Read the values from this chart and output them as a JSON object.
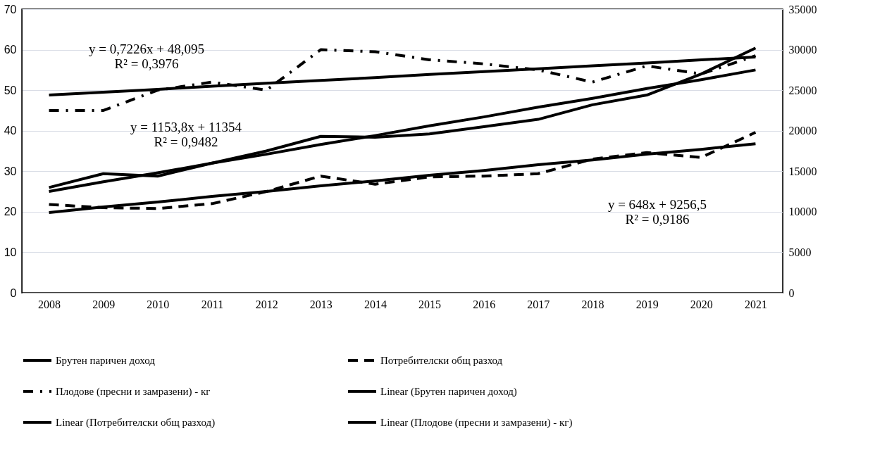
{
  "chart_data": {
    "type": "line",
    "categories": [
      "2008",
      "2009",
      "2010",
      "2011",
      "2012",
      "2013",
      "2014",
      "2015",
      "2016",
      "2017",
      "2018",
      "2019",
      "2020",
      "2021"
    ],
    "series": [
      {
        "name": "Брутен паричен доход",
        "color": "#000000",
        "axis": "y2",
        "line_style": "solid",
        "values": [
          13000,
          14700,
          14400,
          16000,
          17500,
          19300,
          19200,
          19600,
          20500,
          21400,
          23200,
          24400,
          27000,
          30200
        ]
      },
      {
        "name": "Потребителски общ разход",
        "color": "#000000",
        "axis": "y2",
        "line_style": "dashed",
        "values": [
          10900,
          10500,
          10400,
          11000,
          12500,
          14400,
          13400,
          14300,
          14400,
          14700,
          16500,
          17300,
          16700,
          19800
        ]
      },
      {
        "name": "Плодове (пресни и замразени) - кг",
        "color": "#000000",
        "axis": "y",
        "line_style": "dashdot",
        "values": [
          45,
          45,
          50,
          52,
          50,
          60,
          59.5,
          57.5,
          56.5,
          55,
          52,
          56,
          54,
          58.5
        ]
      },
      {
        "name": "Linear (Брутен паричен доход)",
        "color": "#000000",
        "axis": "y2",
        "line_style": "solid",
        "values": [
          12500,
          13700,
          14800,
          16000,
          17100,
          18300,
          19400,
          20600,
          21700,
          22900,
          24000,
          25200,
          26300,
          27500
        ]
      },
      {
        "name": "Linear (Потребителски общ разход)",
        "color": "#000000",
        "axis": "y2",
        "line_style": "solid",
        "values": [
          9900,
          10600,
          11200,
          11900,
          12500,
          13200,
          13800,
          14500,
          15100,
          15800,
          16400,
          17100,
          17700,
          18400
        ]
      },
      {
        "name": "Linear (Плодове (пресни и замразени) - кг)",
        "color": "#000000",
        "axis": "y",
        "line_style": "solid",
        "values": [
          48.8,
          49.5,
          50.2,
          51,
          51.7,
          52.4,
          53.1,
          53.9,
          54.6,
          55.3,
          56,
          56.7,
          57.5,
          58.2
        ]
      }
    ],
    "ylim": [
      0,
      70
    ],
    "yticks": [
      0,
      10,
      20,
      30,
      40,
      50,
      60,
      70
    ],
    "y2lim": [
      0,
      35000
    ],
    "y2ticks": [
      0,
      5000,
      10000,
      15000,
      20000,
      25000,
      30000,
      35000
    ],
    "grid": "y",
    "legend": "bottom",
    "marker": "none",
    "annotations": [
      "y = 0,7226x + 48,095\nR² = 0,3976",
      "y = 1153,8x + 11354\nR² = 0,9482",
      "y = 648x + 9256,5\nR² = 0,9186"
    ]
  }
}
